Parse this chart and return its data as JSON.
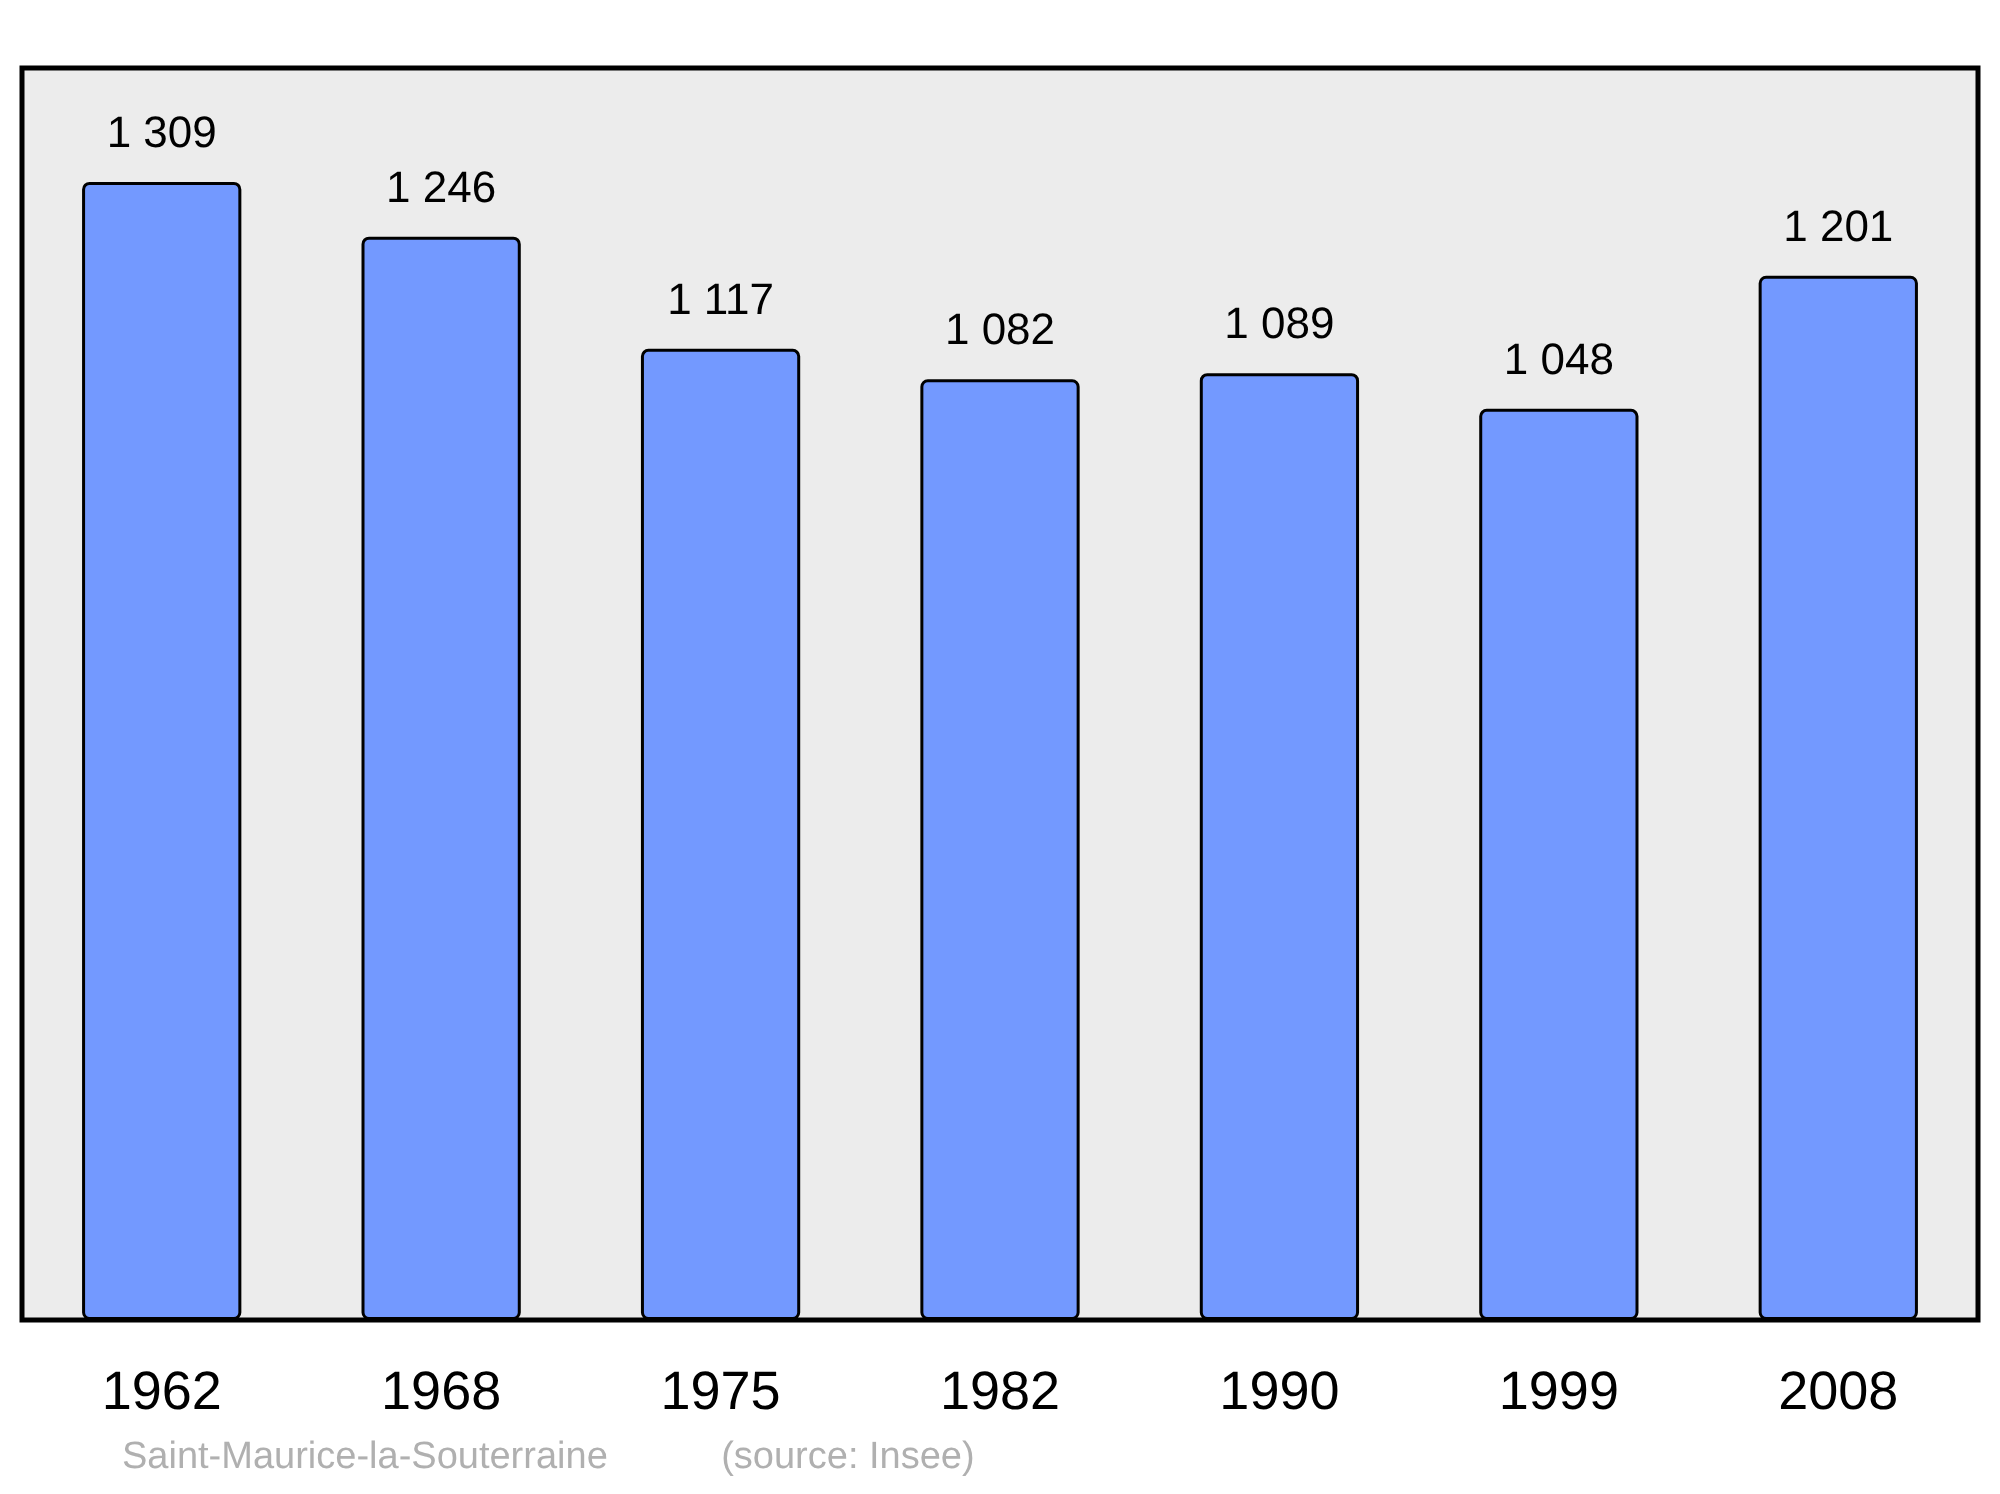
{
  "chart_data": {
    "type": "bar",
    "categories": [
      "1962",
      "1968",
      "1975",
      "1982",
      "1990",
      "1999",
      "2008"
    ],
    "values": [
      1309,
      1246,
      1117,
      1082,
      1089,
      1048,
      1201
    ],
    "color": "#7399ff",
    "data_labels": true,
    "ylim": [
      0,
      1440
    ],
    "tick_labels": "x",
    "annotations": [
      "Saint-Maurice-la-Souterraine",
      "(source: Insee)"
    ]
  }
}
